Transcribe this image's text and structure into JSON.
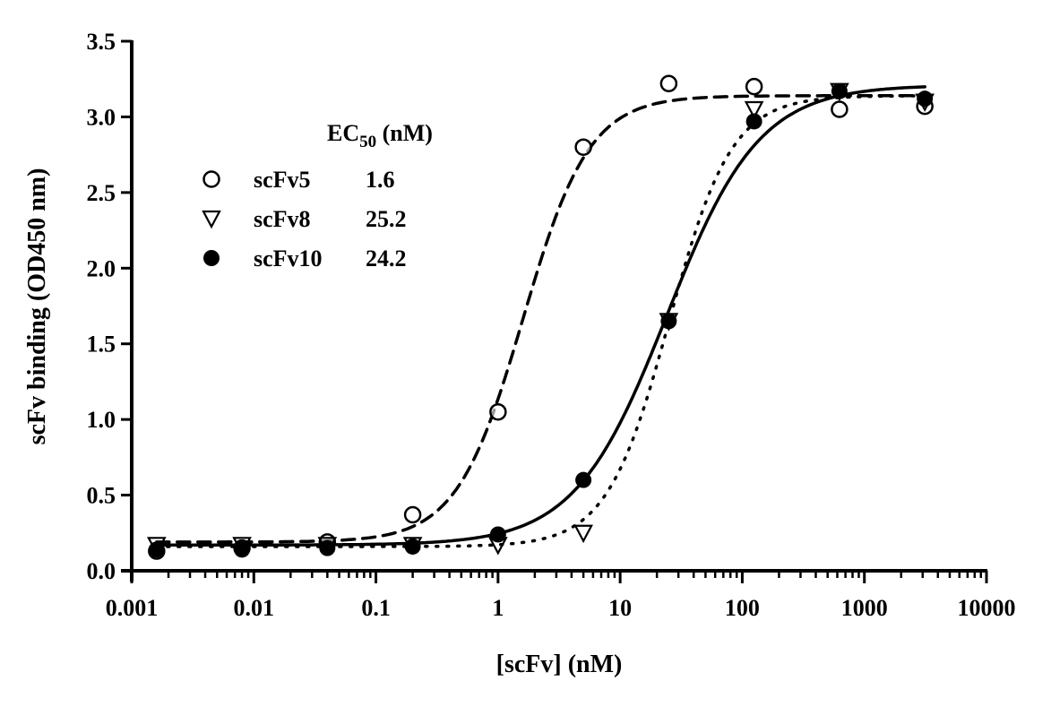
{
  "chart_data": {
    "type": "scatter",
    "title": "",
    "xlabel": "[scFv] (nM)",
    "ylabel": "scFv binding (OD450 nm)",
    "xscale": "log",
    "xlim": [
      0.001,
      10000
    ],
    "ylim": [
      0.0,
      3.5
    ],
    "x_ticks": [
      "0.001",
      "0.01",
      "0.1",
      "1",
      "10",
      "100",
      "1000",
      "10000"
    ],
    "y_ticks": [
      "0.0",
      "0.5",
      "1.0",
      "1.5",
      "2.0",
      "2.5",
      "3.0",
      "3.5"
    ],
    "grid": false,
    "legend": {
      "title": "EC",
      "title_sub": "50",
      "title_suffix": " (nM)",
      "position": "upper-left"
    },
    "x": [
      0.0016,
      0.008,
      0.04,
      0.2,
      1,
      5,
      25,
      125,
      625,
      3125
    ],
    "series": [
      {
        "name": "scFv5",
        "ec50": "1.6",
        "marker": "open-circle",
        "line": "dashed",
        "values": [
          0.13,
          0.15,
          0.19,
          0.37,
          1.05,
          2.8,
          3.22,
          3.2,
          3.05,
          3.07
        ],
        "fit": {
          "bottom": 0.19,
          "top": 3.14,
          "ec50": 1.6,
          "hill": 1.6
        }
      },
      {
        "name": "scFv8",
        "ec50": "25.2",
        "marker": "open-triangle-down",
        "line": "dotted",
        "values": [
          0.17,
          0.17,
          0.17,
          0.17,
          0.17,
          0.25,
          1.65,
          3.05,
          3.17,
          3.1
        ],
        "fit": {
          "bottom": 0.16,
          "top": 3.14,
          "ec50": 25.2,
          "hill": 1.7
        }
      },
      {
        "name": "scFv10",
        "ec50": "24.2",
        "marker": "filled-circle",
        "line": "solid",
        "values": [
          0.14,
          0.14,
          0.15,
          0.16,
          0.24,
          0.6,
          1.65,
          2.97,
          3.17,
          3.12
        ],
        "fit": {
          "bottom": 0.17,
          "top": 3.21,
          "ec50": 24.2,
          "hill": 1.15
        }
      }
    ]
  }
}
